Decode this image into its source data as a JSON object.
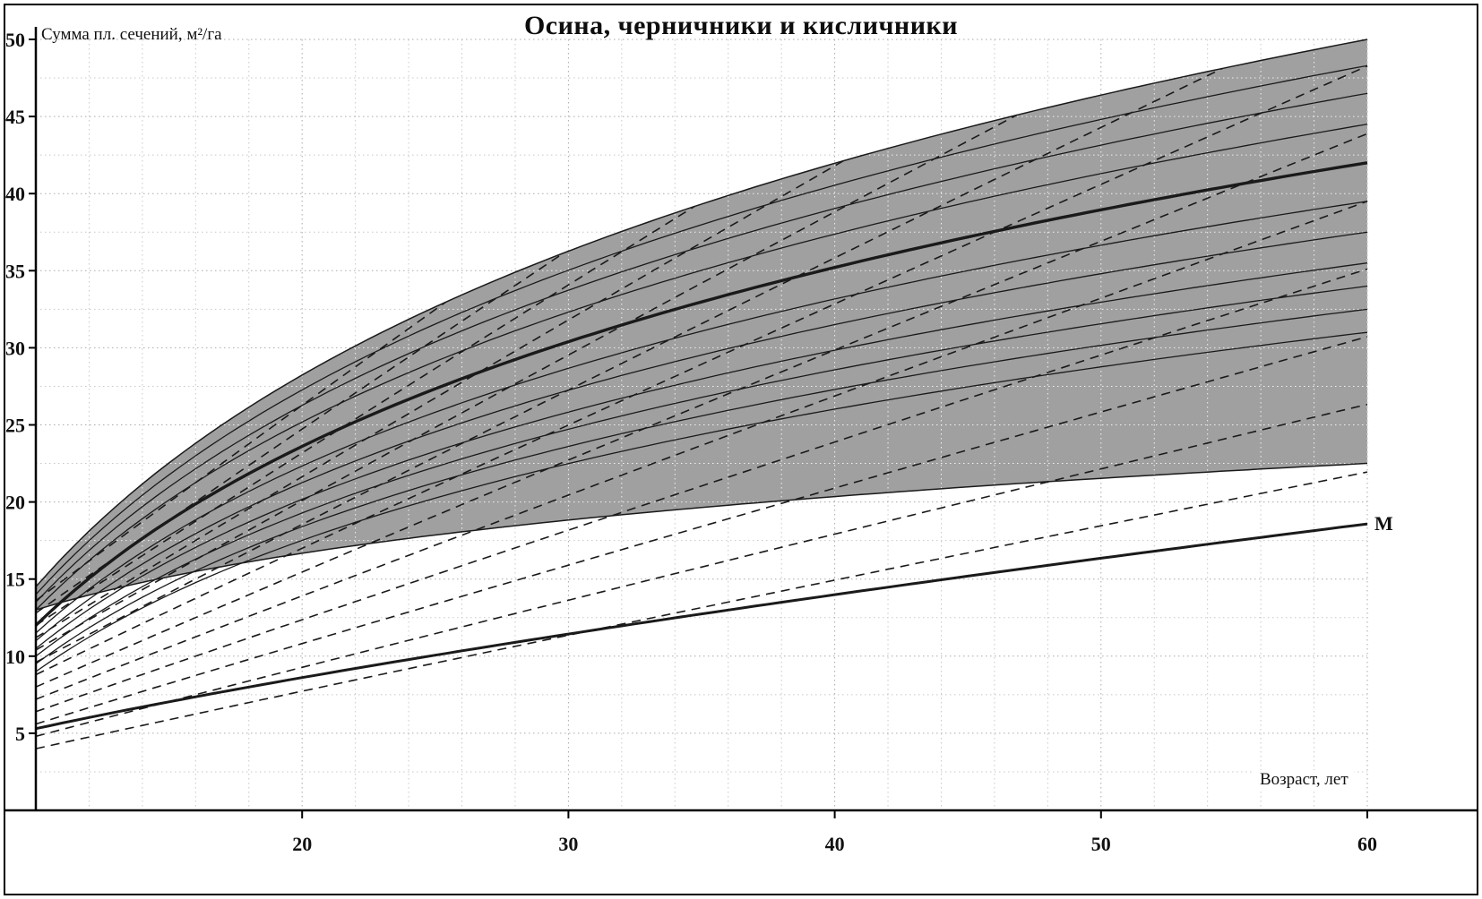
{
  "chart_data": {
    "type": "line",
    "title": "Осина, черничники и кисличники",
    "xlabel": "Возраст, лет",
    "ylabel": "Сумма пл. сечений, м²/га",
    "xlim": [
      10,
      60
    ],
    "ylim": [
      0,
      50
    ],
    "xticks": [
      20,
      30,
      40,
      50,
      60
    ],
    "yticks": [
      5,
      10,
      15,
      20,
      25,
      30,
      35,
      40,
      45,
      50
    ],
    "grid": {
      "style": "dotted",
      "x_step": 2,
      "y_step": 2.5,
      "minor_color": "#c8c8c8",
      "major_color": "#aaaaaa",
      "band_grid_color": "rgba(255,255,255,0.85)"
    },
    "interpolation": "solid curves: value(age) = v10 + (v60 - v10) * ln(age/10)/ln(6); M curve and dashed family: value(age) = v10 * (age/10)^exponent",
    "band": {
      "fill": "#a0a0a0",
      "edge_color": "#1a1a1a",
      "top_curve": {
        "v10": 14.5,
        "v60": 50.0
      },
      "bottom_curve": {
        "v10": 13.0,
        "v60": 22.5
      }
    },
    "solid_curves": [
      {
        "v10": 14.0,
        "v60": 48.3
      },
      {
        "v10": 13.5,
        "v60": 46.5
      },
      {
        "v10": 13.0,
        "v60": 44.5
      },
      {
        "v10": 11.5,
        "v60": 39.5
      },
      {
        "v10": 11.0,
        "v60": 37.5
      },
      {
        "v10": 10.5,
        "v60": 35.5
      },
      {
        "v10": 10.0,
        "v60": 34.0
      },
      {
        "v10": 9.5,
        "v60": 32.5
      },
      {
        "v10": 9.0,
        "v60": 31.0
      }
    ],
    "mean_curve": {
      "v10": 12.0,
      "v60": 42.0,
      "style": "thick"
    },
    "m_curve": {
      "label": "М",
      "v10": 5.3,
      "v60": 18.5,
      "exponent": 0.7,
      "style": "thick"
    },
    "dashed_family": {
      "exponent": 0.95,
      "v10_list": [
        4,
        4.8,
        5.6,
        6.4,
        7.2,
        8,
        8.8,
        9.6,
        10.4,
        11.2,
        12,
        12.8,
        13.6
      ],
      "clip": "band_top",
      "dash_pattern": "10 7"
    },
    "colors": {
      "curve": "#1a1a1a",
      "axis": "#000000",
      "text": "#111111"
    }
  }
}
